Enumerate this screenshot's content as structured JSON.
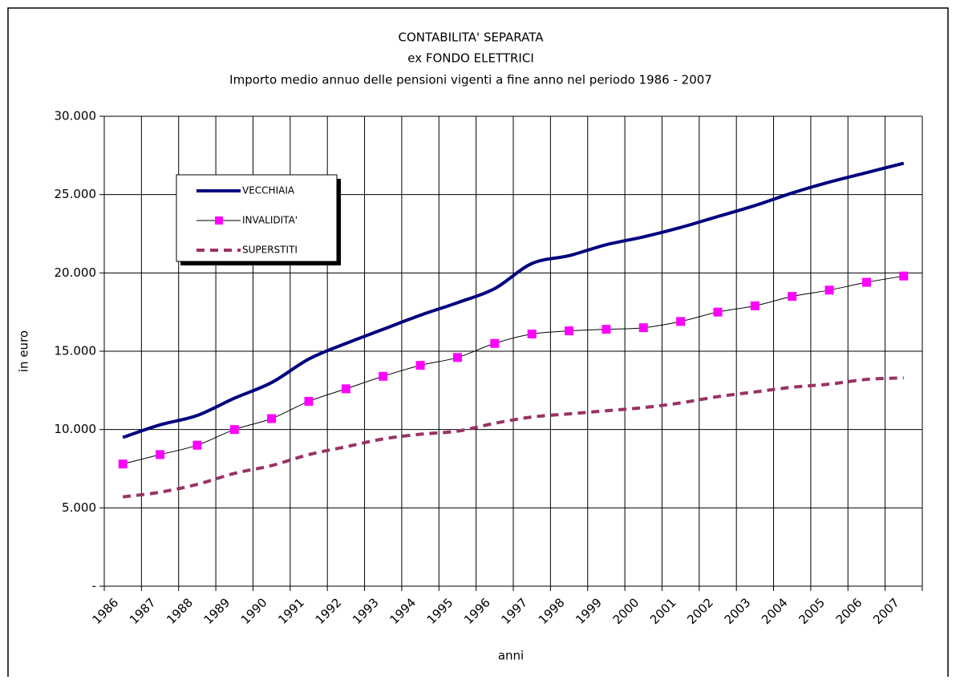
{
  "chart_data": {
    "type": "line",
    "title": [
      "CONTABILITA' SEPARATA",
      "ex FONDO ELETTRICI",
      "Importo medio annuo delle pensioni vigenti a fine anno nel periodo 1986 - 2007"
    ],
    "x_label": "anni",
    "y_label": "in euro",
    "categories": [
      "1986",
      "1987",
      "1988",
      "1989",
      "1990",
      "1991",
      "1992",
      "1993",
      "1994",
      "1995",
      "1996",
      "1997",
      "1998",
      "1999",
      "2000",
      "2001",
      "2002",
      "2003",
      "2004",
      "2005",
      "2006",
      "2007"
    ],
    "series": [
      {
        "name": "VECCHIAIA",
        "color": "#000080",
        "width": 4,
        "line_style": "solid",
        "values": [
          9500,
          10300,
          10900,
          12000,
          13000,
          14500,
          15500,
          16400,
          17300,
          18100,
          19000,
          20600,
          21100,
          21800,
          22300,
          22900,
          23600,
          24300,
          25100,
          25800,
          26400,
          27000
        ]
      },
      {
        "name": "INVALIDITA'",
        "color": "#000000",
        "marker_color": "#ff00ff",
        "marker": "square",
        "width": 1,
        "line_style": "solid",
        "values": [
          7800,
          8400,
          9000,
          10000,
          10700,
          11800,
          12600,
          13400,
          14100,
          14600,
          15500,
          16100,
          16300,
          16400,
          16500,
          16900,
          17500,
          17900,
          18500,
          18900,
          19400,
          19800
        ]
      },
      {
        "name": "SUPERSTITI",
        "color": "#993366",
        "width": 4,
        "line_style": "dashed",
        "values": [
          5700,
          6000,
          6500,
          7200,
          7700,
          8400,
          8900,
          9400,
          9700,
          9900,
          10400,
          10800,
          11000,
          11200,
          11400,
          11700,
          12100,
          12400,
          12700,
          12900,
          13200,
          13300
        ]
      }
    ],
    "ylim": [
      0,
      30000
    ],
    "yticks": [
      {
        "value": 0,
        "label": "-"
      },
      {
        "value": 5000,
        "label": "5.000"
      },
      {
        "value": 10000,
        "label": "10.000"
      },
      {
        "value": 15000,
        "label": "15.000"
      },
      {
        "value": 20000,
        "label": "20.000"
      },
      {
        "value": 25000,
        "label": "25.000"
      },
      {
        "value": 30000,
        "label": "30.000"
      }
    ],
    "grid": true,
    "xgrid": true,
    "legend": "upper left"
  }
}
